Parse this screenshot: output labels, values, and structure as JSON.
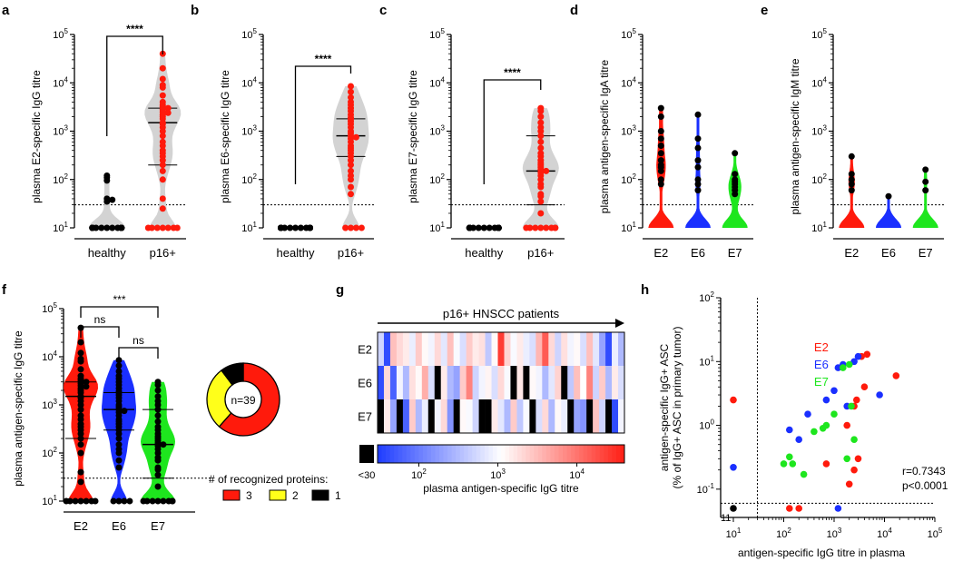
{
  "figure": {
    "panel_letters": [
      "a",
      "b",
      "c",
      "d",
      "e",
      "f",
      "g",
      "h"
    ],
    "y_tick_labels": [
      "10^1",
      "10^2",
      "10^3",
      "10^4",
      "10^5"
    ],
    "y_tick_base": "10",
    "y_tick_exps": [
      "1",
      "2",
      "3",
      "4",
      "5"
    ],
    "detection_limit": 30,
    "significance": "****",
    "colors": {
      "E2": "#ff1a0c",
      "E6": "#1a2fff",
      "E7": "#1ee61e",
      "grey": "#d3d3d3",
      "black": "#000000",
      "yellow": "#ffff1a"
    }
  },
  "chart_data": [
    {
      "id": "a",
      "type": "scatter",
      "ylabel": "plasma E2-specific IgG titre",
      "categories": [
        "healthy",
        "p16+"
      ],
      "ylim": [
        10,
        100000
      ],
      "scale": "log",
      "significance": "****",
      "series": [
        {
          "name": "healthy",
          "color": "black",
          "values": [
            120,
            110,
            95,
            40,
            38,
            35,
            10,
            10,
            10,
            10,
            10,
            10,
            10,
            10,
            10,
            10,
            10,
            10,
            10,
            10,
            10,
            10,
            10,
            10,
            10,
            10
          ]
        },
        {
          "name": "p16+",
          "color": "red",
          "median": 1500,
          "q1": 200,
          "q3": 3000,
          "values": [
            40000,
            20000,
            12000,
            9000,
            8000,
            5500,
            4000,
            3500,
            3200,
            3000,
            2800,
            2500,
            2400,
            2200,
            2000,
            1800,
            1500,
            1400,
            1200,
            1000,
            800,
            600,
            500,
            400,
            350,
            300,
            250,
            200,
            150,
            100,
            40,
            25,
            10,
            10,
            10,
            10,
            10,
            10,
            10
          ]
        }
      ]
    },
    {
      "id": "b",
      "type": "scatter",
      "ylabel": "plasma E6-specific IgG titre",
      "categories": [
        "healthy",
        "p16+"
      ],
      "ylim": [
        10,
        100000
      ],
      "scale": "log",
      "significance": "****",
      "series": [
        {
          "name": "healthy",
          "color": "black",
          "values": [
            10,
            10,
            10,
            10,
            10,
            10,
            10,
            10,
            10,
            10,
            10,
            10,
            10,
            10,
            10,
            10,
            10,
            10,
            10,
            10
          ]
        },
        {
          "name": "p16+",
          "color": "red",
          "median": 800,
          "q1": 300,
          "q3": 1800,
          "values": [
            8500,
            6500,
            5000,
            4000,
            3500,
            3000,
            2600,
            2200,
            1900,
            1800,
            1600,
            1400,
            1200,
            1000,
            900,
            800,
            750,
            700,
            600,
            500,
            450,
            400,
            350,
            300,
            250,
            200,
            150,
            120,
            100,
            70,
            50,
            10,
            10,
            10,
            10
          ]
        }
      ]
    },
    {
      "id": "c",
      "type": "scatter",
      "ylabel": "plasma E7-specific IgG titre",
      "categories": [
        "healthy",
        "p16+"
      ],
      "ylim": [
        10,
        100000
      ],
      "scale": "log",
      "significance": "****",
      "series": [
        {
          "name": "healthy",
          "color": "black",
          "values": [
            10,
            10,
            10,
            10,
            10,
            10,
            10,
            10,
            10,
            10,
            10,
            10,
            10,
            10,
            10,
            10,
            10,
            10,
            10,
            10
          ]
        },
        {
          "name": "p16+",
          "color": "red",
          "median": 150,
          "q1": 30,
          "q3": 800,
          "values": [
            3000,
            2600,
            2000,
            1500,
            1200,
            1000,
            800,
            600,
            450,
            350,
            300,
            250,
            220,
            200,
            180,
            160,
            150,
            140,
            120,
            100,
            80,
            70,
            50,
            45,
            35,
            20,
            10,
            10,
            10,
            10,
            10,
            10,
            10,
            10
          ]
        }
      ]
    },
    {
      "id": "d",
      "type": "scatter",
      "ylabel": "plasma antigen-specific IgA titre",
      "categories": [
        "E2",
        "E6",
        "E7"
      ],
      "ylim": [
        10,
        100000
      ],
      "scale": "log",
      "series": [
        {
          "name": "E2",
          "color": "E2",
          "values": [
            3000,
            2000,
            1000,
            700,
            500,
            350,
            250,
            200,
            180,
            150,
            100,
            80,
            10,
            10,
            10,
            10,
            10,
            10,
            10,
            10,
            10,
            10,
            10,
            10
          ]
        },
        {
          "name": "E6",
          "color": "E6",
          "values": [
            2200,
            700,
            450,
            250,
            180,
            100,
            80,
            60,
            10,
            10,
            10,
            10,
            10,
            10,
            10,
            10,
            10,
            10,
            10,
            10,
            10,
            10
          ]
        },
        {
          "name": "E7",
          "color": "E7",
          "values": [
            350,
            130,
            100,
            90,
            80,
            70,
            60,
            50,
            40,
            35,
            10,
            10,
            10,
            10,
            10,
            10,
            10,
            10,
            10,
            10,
            10,
            10
          ]
        }
      ]
    },
    {
      "id": "e",
      "type": "scatter",
      "ylabel": "plasma antigen-specific IgM titre",
      "categories": [
        "E2",
        "E6",
        "E7"
      ],
      "ylim": [
        10,
        100000
      ],
      "scale": "log",
      "series": [
        {
          "name": "E2",
          "color": "E2",
          "values": [
            300,
            130,
            100,
            80,
            60,
            10,
            10,
            10,
            10,
            10,
            10,
            10,
            10,
            10,
            10,
            10,
            10,
            10
          ]
        },
        {
          "name": "E6",
          "color": "E6",
          "values": [
            45,
            10,
            10,
            10,
            10,
            10,
            10,
            10,
            10,
            10,
            10,
            10,
            10,
            10,
            10,
            10
          ]
        },
        {
          "name": "E7",
          "color": "E7",
          "values": [
            160,
            90,
            60,
            10,
            10,
            10,
            10,
            10,
            10,
            10,
            10,
            10,
            10,
            10,
            10,
            10,
            10,
            10
          ]
        }
      ]
    },
    {
      "id": "f",
      "type": "scatter",
      "ylabel": "plasma antigen-specific IgG titre",
      "categories": [
        "E2",
        "E6",
        "E7"
      ],
      "ylim": [
        10,
        100000
      ],
      "scale": "log",
      "comparisons": [
        {
          "from": "E2",
          "to": "E6",
          "label": "ns"
        },
        {
          "from": "E6",
          "to": "E7",
          "label": "ns"
        },
        {
          "from": "E2",
          "to": "E7",
          "label": "***"
        }
      ],
      "series": [
        {
          "name": "E2",
          "color": "E2",
          "median": 1500,
          "q1": 200,
          "q3": 3000,
          "values": [
            40000,
            20000,
            12000,
            9000,
            8000,
            5500,
            4000,
            3500,
            3200,
            3000,
            2800,
            2500,
            2400,
            2200,
            2000,
            1800,
            1500,
            1400,
            1200,
            1000,
            800,
            600,
            500,
            400,
            350,
            300,
            250,
            200,
            150,
            100,
            40,
            25,
            10,
            10,
            10,
            10,
            10,
            10,
            10
          ]
        },
        {
          "name": "E6",
          "color": "E6",
          "median": 800,
          "q1": 300,
          "q3": 1800,
          "values": [
            8500,
            6500,
            5000,
            4000,
            3500,
            3000,
            2600,
            2200,
            1900,
            1800,
            1600,
            1400,
            1200,
            1000,
            900,
            800,
            750,
            700,
            600,
            500,
            450,
            400,
            350,
            300,
            250,
            200,
            150,
            120,
            100,
            70,
            50,
            10,
            10,
            10,
            10
          ]
        },
        {
          "name": "E7",
          "color": "E7",
          "median": 150,
          "q1": 30,
          "q3": 800,
          "values": [
            3000,
            2600,
            2000,
            1500,
            1200,
            1000,
            800,
            600,
            450,
            350,
            300,
            250,
            220,
            200,
            180,
            160,
            150,
            140,
            120,
            100,
            80,
            70,
            50,
            45,
            35,
            20,
            10,
            10,
            10,
            10,
            10,
            10,
            10,
            10
          ]
        }
      ]
    },
    {
      "id": "f-donut",
      "type": "pie",
      "center_label": "n=39",
      "title": "# of recognized proteins:",
      "categories": [
        "3",
        "2",
        "1"
      ],
      "values": [
        24,
        11,
        4
      ],
      "colors": [
        "#ff1a0c",
        "#ffff1a",
        "#000000"
      ]
    },
    {
      "id": "g",
      "type": "heatmap",
      "title": "p16+ HNSCC patients",
      "rows": [
        "E2",
        "E6",
        "E7"
      ],
      "colorbar_label": "plasma antigen-specific IgG titre",
      "below_limit_label": "<30",
      "colorbar_ticks": [
        "10^2",
        "10^3",
        "10^4"
      ],
      "colorbar_exps": [
        "2",
        "3",
        "4"
      ],
      "range": [
        30,
        40000
      ],
      "values": [
        [
          500,
          40,
          3000,
          2000,
          1500,
          800,
          2500,
          1200,
          900,
          2000,
          700,
          3000,
          1000,
          600,
          2500,
          1500,
          1800,
          400,
          1200,
          25000,
          2200,
          1000,
          1500,
          800,
          600,
          3500,
          15000,
          2000,
          500,
          1800,
          900,
          1200,
          600,
          3000,
          700,
          200,
          40,
          800,
          300
        ],
        [
          40,
          2000,
          60,
          900,
          300,
          1800,
          1200,
          4000,
          600,
          25,
          1500,
          300,
          200,
          2500,
          8000,
          500,
          900,
          1300,
          600,
          2000,
          1000,
          25,
          1600,
          25,
          1200,
          900,
          300,
          700,
          2200,
          25,
          400,
          3000,
          1100,
          8000,
          500,
          2500,
          300,
          1500,
          600
        ],
        [
          25,
          1500,
          200,
          25,
          60,
          2500,
          300,
          800,
          25,
          900,
          2000,
          150,
          25,
          1200,
          1000,
          500,
          25,
          25,
          1500,
          700,
          300,
          2500,
          400,
          1000,
          25,
          600,
          2000,
          300,
          1200,
          800,
          25,
          200,
          150,
          25,
          2800,
          500,
          25,
          40,
          900
        ]
      ]
    },
    {
      "id": "h",
      "type": "scatter",
      "xlabel": "antigen-specific IgG titre in plasma",
      "ylabel": "antigen-specific IgG+ ASC",
      "ylabel2": "(% of IgG+ ASC in primary tumor)",
      "xlim": [
        10,
        100000
      ],
      "ylim": [
        0.05,
        100
      ],
      "scale": "log-log",
      "x_tick_labels": [
        "10^1",
        "10^2",
        "10^3",
        "10^4",
        "10^5"
      ],
      "x_tick_exps": [
        "1",
        "2",
        "3",
        "4",
        "5"
      ],
      "y_tick_labels": [
        "10^-1",
        "10^0",
        "10^1",
        "10^2"
      ],
      "y_tick_exps": [
        "-1",
        "0",
        "1",
        "2"
      ],
      "annotation_r": "r=0.7343",
      "annotation_p": "p<0.0001",
      "count_label": "11",
      "series": [
        {
          "name": "E2",
          "color": "E2",
          "x": [
            10,
            130,
            200,
            700,
            1800,
            2500,
            2800,
            3500,
            4500,
            4000,
            17000,
            3000,
            2000,
            2500
          ],
          "y": [
            2.5,
            0.05,
            0.05,
            0.25,
            1.0,
            2.0,
            2.5,
            12,
            13,
            4,
            6,
            0.3,
            0.12,
            0.2
          ]
        },
        {
          "name": "E6",
          "color": "E6",
          "x": [
            10,
            130,
            200,
            300,
            700,
            1000,
            1200,
            1500,
            1800,
            2500,
            3000,
            8000,
            1200
          ],
          "y": [
            0.22,
            0.85,
            0.6,
            1.5,
            2.5,
            3.5,
            8,
            9,
            2,
            10,
            12,
            3,
            0.05
          ]
        },
        {
          "name": "E7",
          "color": "E7",
          "x": [
            100,
            130,
            150,
            250,
            400,
            600,
            700,
            1000,
            1500,
            2000,
            2200,
            2500,
            1800
          ],
          "y": [
            0.25,
            0.32,
            0.25,
            0.17,
            0.8,
            0.9,
            1.0,
            1.5,
            8,
            9,
            2,
            0.6,
            0.3
          ]
        },
        {
          "name": "below",
          "color": "black",
          "x": [
            10
          ],
          "y": [
            0.05
          ]
        }
      ],
      "legend": [
        "E2",
        "E6",
        "E7"
      ]
    }
  ]
}
